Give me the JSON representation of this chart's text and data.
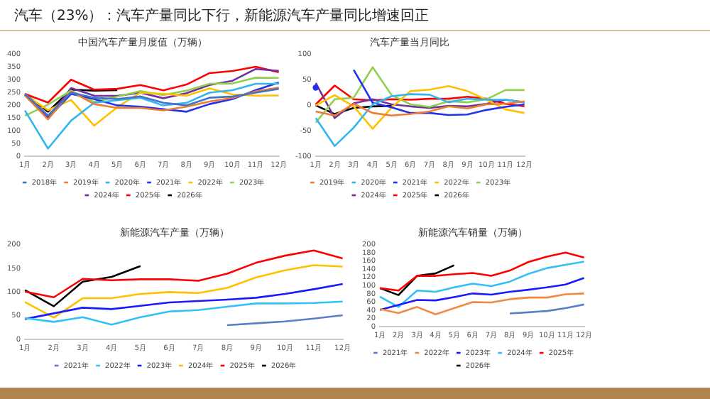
{
  "chart_data": [
    {
      "type": "other",
      "title": "汽车（23%）：汽车产量同比下行，新能源汽车产量同比增速回正"
    },
    {
      "type": "line",
      "title": "中国汽车产量月度值（万辆）",
      "categories": [
        "1月",
        "2月",
        "3月",
        "4月",
        "5月",
        "6月",
        "7月",
        "8月",
        "9月",
        "10月",
        "11月",
        "12月"
      ],
      "ylim": [
        0,
        400
      ],
      "yticks": [
        0,
        50,
        100,
        150,
        200,
        250,
        300,
        350,
        400
      ],
      "legend": "bottom",
      "marker": "none",
      "series": [
        {
          "name": "2018年",
          "color": "#4472c4",
          "values": [
            245,
            160,
            250,
            230,
            225,
            235,
            210,
            200,
            230,
            235,
            250,
            265
          ]
        },
        {
          "name": "2019年",
          "color": "#ed7d31",
          "values": [
            240,
            145,
            255,
            205,
            190,
            190,
            180,
            195,
            215,
            230,
            255,
            270
          ]
        },
        {
          "name": "2020年",
          "color": "#33b5f0",
          "values": [
            180,
            30,
            140,
            210,
            220,
            230,
            200,
            210,
            250,
            260,
            285,
            285
          ]
        },
        {
          "name": "2021年",
          "color": "#2233ee",
          "values": [
            240,
            150,
            245,
            225,
            200,
            195,
            185,
            175,
            205,
            225,
            260,
            290
          ]
        },
        {
          "name": "2022年",
          "color": "#ffc000",
          "values": [
            242,
            181,
            221,
            120,
            193,
            250,
            245,
            238,
            267,
            243,
            238,
            239
          ]
        },
        {
          "name": "2023年",
          "color": "#92d050",
          "values": [
            159,
            203,
            258,
            214,
            234,
            256,
            240,
            258,
            285,
            286,
            309,
            308
          ]
        },
        {
          "name": "2024年",
          "color": "#7030a0",
          "values": [
            241,
            151,
            268,
            238,
            237,
            250,
            228,
            248,
            280,
            297,
            343,
            336
          ]
        },
        {
          "name": "2025年",
          "color": "#ff0000",
          "values": [
            245,
            211,
            301,
            262,
            265,
            280,
            259,
            282,
            327,
            335,
            352,
            330
          ]
        },
        {
          "name": "2026年",
          "color": "#000000",
          "values": [
            245,
            175,
            262,
            258,
            260,
            null,
            null,
            null,
            null,
            null,
            null,
            null
          ]
        }
      ]
    },
    {
      "type": "line",
      "title": "汽车产量当月同比",
      "categories": [
        "1月",
        "2月",
        "3月",
        "4月",
        "5月",
        "6月",
        "7月",
        "8月",
        "9月",
        "10月",
        "11月",
        "12月"
      ],
      "ylim": [
        -100,
        100
      ],
      "yticks": [
        -100,
        -50,
        0,
        50,
        100
      ],
      "legend": "bottom",
      "marker": "none",
      "series": [
        {
          "name": "2019年",
          "color": "#ed7d31",
          "values": [
            -12,
            -20,
            3,
            -15,
            -20,
            -17,
            -12,
            -2,
            -6,
            2,
            3,
            8
          ]
        },
        {
          "name": "2020年",
          "color": "#33b5f0",
          "values": [
            -25,
            -80,
            -44,
            2,
            18,
            22,
            21,
            6,
            13,
            11,
            11,
            6
          ]
        },
        {
          "name": "2021年",
          "color": "#2233ee",
          "values": [
            35,
            null,
            70,
            5,
            -4,
            -15,
            -15,
            -19,
            -18,
            -9,
            -3,
            2
          ]
        },
        {
          "name": "2022年",
          "color": "#ffc000",
          "values": [
            0,
            20,
            -2,
            -46,
            -4,
            28,
            31,
            38,
            28,
            11,
            -8,
            -15
          ]
        },
        {
          "name": "2023年",
          "color": "#92d050",
          "values": [
            -34,
            12,
            15,
            75,
            20,
            2,
            -3,
            8,
            6,
            12,
            30,
            30
          ]
        },
        {
          "name": "2024年",
          "color": "#7030a0",
          "values": [
            44,
            -25,
            4,
            12,
            2,
            -2,
            -5,
            -1,
            -2,
            3,
            11,
            6
          ]
        },
        {
          "name": "2025年",
          "color": "#ff0000",
          "values": [
            2,
            39,
            12,
            10,
            12,
            11,
            13,
            13,
            17,
            13,
            3,
            -2
          ]
        },
        {
          "name": "2026年",
          "color": "#000000",
          "values": [
            0,
            -17,
            -5,
            -2,
            -1,
            null,
            null,
            null,
            null,
            null,
            null,
            null
          ]
        }
      ]
    },
    {
      "type": "line",
      "title": "新能源汽车产量（万辆）",
      "categories": [
        "1月",
        "2月",
        "3月",
        "4月",
        "5月",
        "6月",
        "7月",
        "8月",
        "9月",
        "10月",
        "11月",
        "12月"
      ],
      "ylim": [
        0,
        200
      ],
      "yticks": [
        0,
        50,
        100,
        150,
        200
      ],
      "legend": "bottom",
      "marker": "none",
      "series": [
        {
          "name": "2021年",
          "color": "#5b7fc7",
          "values": [
            null,
            null,
            null,
            null,
            null,
            null,
            null,
            30,
            34,
            38,
            44,
            51
          ]
        },
        {
          "name": "2022年",
          "color": "#33c0f5",
          "values": [
            45,
            37,
            47,
            31,
            47,
            59,
            62,
            69,
            76,
            76,
            77,
            80
          ]
        },
        {
          "name": "2023年",
          "color": "#1a1aff",
          "values": [
            43,
            55,
            67,
            64,
            71,
            78,
            81,
            84,
            88,
            96,
            106,
            117
          ]
        },
        {
          "name": "2024年",
          "color": "#ffc000",
          "values": [
            79,
            46,
            87,
            87,
            96,
            100,
            98,
            109,
            131,
            146,
            157,
            154
          ]
        },
        {
          "name": "2025年",
          "color": "#ff0000",
          "values": [
            101,
            89,
            128,
            125,
            127,
            127,
            124,
            139,
            162,
            177,
            188,
            171
          ]
        },
        {
          "name": "2026年",
          "color": "#000000",
          "values": [
            104,
            70,
            122,
            132,
            155,
            null,
            null,
            null,
            null,
            null,
            null,
            null
          ]
        }
      ]
    },
    {
      "type": "line",
      "title": "新能源汽车销量（万辆）",
      "categories": [
        "1月",
        "2月",
        "3月",
        "4月",
        "5月",
        "6月",
        "7月",
        "8月",
        "9月",
        "10月",
        "11月",
        "12月"
      ],
      "ylim": [
        0,
        200
      ],
      "yticks": [
        0,
        20,
        40,
        60,
        80,
        100,
        120,
        140,
        160,
        180,
        200
      ],
      "legend": "bottom",
      "marker": "none",
      "series": [
        {
          "name": "2021年",
          "color": "#5b7fc7",
          "values": [
            null,
            null,
            null,
            null,
            null,
            null,
            null,
            32,
            35,
            38,
            45,
            54
          ]
        },
        {
          "name": "2022年",
          "color": "#f08a40",
          "values": [
            43,
            33,
            48,
            30,
            45,
            60,
            59,
            67,
            71,
            71,
            79,
            81
          ]
        },
        {
          "name": "2023年",
          "color": "#1a1aff",
          "values": [
            41,
            53,
            65,
            64,
            72,
            81,
            78,
            85,
            90,
            96,
            103,
            119
          ]
        },
        {
          "name": "2024年",
          "color": "#33c0f5",
          "values": [
            73,
            48,
            88,
            85,
            96,
            105,
            99,
            110,
            129,
            143,
            151,
            159
          ]
        },
        {
          "name": "2025年",
          "color": "#ff0000",
          "values": [
            94,
            88,
            124,
            124,
            128,
            131,
            124,
            137,
            158,
            171,
            181,
            169
          ]
        },
        {
          "name": "2026年",
          "color": "#000000",
          "values": [
            94,
            77,
            124,
            130,
            150,
            null,
            null,
            null,
            null,
            null,
            null,
            null
          ]
        }
      ]
    }
  ]
}
